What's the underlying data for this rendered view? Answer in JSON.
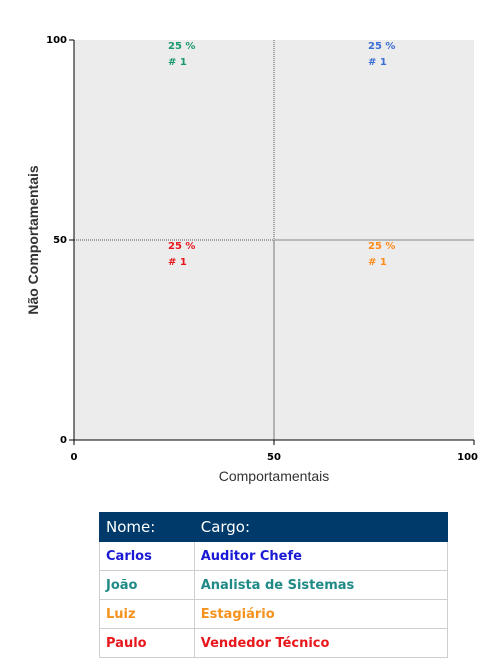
{
  "chart_data": {
    "type": "scatter",
    "xlabel": "Comportamentais",
    "ylabel": "Não Comportamentais",
    "xlim": [
      0,
      100
    ],
    "ylim": [
      0,
      100
    ],
    "x_ticks": [
      "0",
      "50",
      "100"
    ],
    "y_ticks": [
      "0",
      "50",
      "100"
    ],
    "dividers": {
      "x": 50,
      "y": 50
    },
    "background": "#ececec",
    "quadrants": [
      {
        "x": 25,
        "y": 100,
        "percent": "25 %",
        "count": "# 1",
        "color": "#1a9a6c"
      },
      {
        "x": 75,
        "y": 100,
        "percent": "25 %",
        "count": "# 1",
        "color": "#3b6fd6"
      },
      {
        "x": 25,
        "y": 50,
        "percent": "25 %",
        "count": "# 1",
        "color": "#e8171c"
      },
      {
        "x": 75,
        "y": 50,
        "percent": "25 %",
        "count": "# 1",
        "color": "#ff8b1a"
      }
    ]
  },
  "table": {
    "headers": [
      "Nome:",
      "Cargo:"
    ],
    "header_bg": "#003a6b",
    "rows": [
      {
        "name": "Carlos",
        "role": "Auditor Chefe",
        "color": "#1a1ad6"
      },
      {
        "name": "João",
        "role": "Analista de Sistemas",
        "color": "#1f8a86"
      },
      {
        "name": "Luiz",
        "role": "Estagiário",
        "color": "#f5921e"
      },
      {
        "name": "Paulo",
        "role": "Vendedor Técnico",
        "color": "#e8171c"
      }
    ]
  }
}
